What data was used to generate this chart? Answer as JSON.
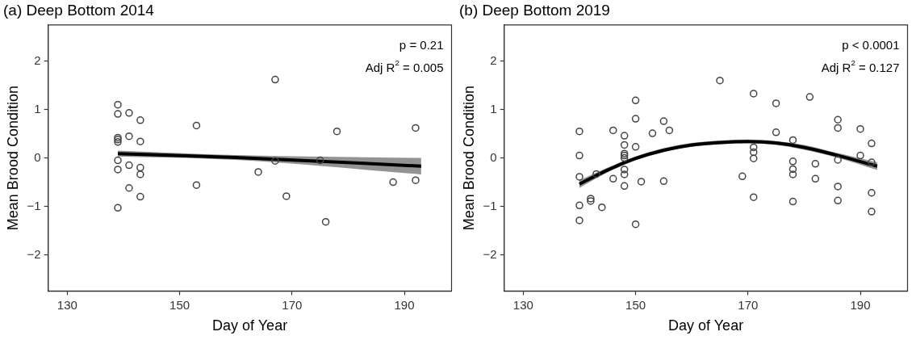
{
  "chart_data": [
    {
      "type": "scatter",
      "title": "(a) Deep Bottom 2014",
      "xlabel": "Day of Year",
      "ylabel": "Mean Brood Condition",
      "xlim": [
        126.6,
        198.4
      ],
      "ylim": [
        -2.75,
        2.75
      ],
      "xticks": [
        130,
        150,
        170,
        190
      ],
      "yticks": [
        -2,
        -1,
        0,
        1,
        2
      ],
      "grid": false,
      "annotations": [
        "p = 0.21",
        "Adj R$^{2}$ = 0.005"
      ],
      "series": [
        {
          "marker": "circle",
          "color": "#444444",
          "x": [
            139,
            139,
            139,
            139,
            139,
            139,
            139,
            139,
            141,
            141,
            141,
            141,
            143,
            143,
            143,
            143,
            143,
            153,
            153,
            164,
            167,
            167,
            169,
            175,
            176,
            178,
            188,
            192,
            192
          ],
          "values": [
            1.1,
            0.91,
            0.42,
            0.38,
            0.33,
            -0.05,
            -0.24,
            -1.03,
            0.93,
            0.45,
            -0.15,
            -0.62,
            0.78,
            0.34,
            -0.2,
            -0.34,
            -0.8,
            0.67,
            -0.56,
            -0.29,
            1.62,
            -0.06,
            -0.79,
            -0.05,
            -1.32,
            0.55,
            -0.5,
            0.62,
            -0.46
          ]
        },
        {
          "type": "line",
          "marker": "none",
          "color": "#000000",
          "x": [
            139,
            160,
            193
          ],
          "values": [
            0.09,
            0.01,
            -0.17
          ],
          "lower": [
            0.03,
            -0.04,
            -0.34
          ],
          "upper": [
            0.15,
            0.06,
            0.0
          ]
        }
      ]
    },
    {
      "type": "scatter",
      "title": "(b) Deep Bottom 2019",
      "xlabel": "Day of Year",
      "ylabel": "Mean Brood Condition",
      "xlim": [
        126.6,
        198.4
      ],
      "ylim": [
        -2.75,
        2.75
      ],
      "xticks": [
        130,
        150,
        170,
        190
      ],
      "yticks": [
        -2,
        -1,
        0,
        1,
        2
      ],
      "grid": false,
      "annotations": [
        "p < 0.0001",
        "Adj R$^{2}$ = 0.127"
      ],
      "series": [
        {
          "marker": "circle",
          "color": "#444444",
          "x": [
            140,
            140,
            140,
            140,
            140,
            142,
            142,
            143,
            144,
            146,
            146,
            148,
            148,
            148,
            148,
            148,
            148,
            148,
            148,
            150,
            150,
            150,
            150,
            151,
            153,
            155,
            155,
            156,
            165,
            169,
            171,
            171,
            171,
            171,
            171,
            175,
            175,
            178,
            178,
            178,
            178,
            178,
            181,
            182,
            182,
            186,
            186,
            186,
            186,
            186,
            190,
            190,
            192,
            192,
            192,
            192
          ],
          "values": [
            0.55,
            0.05,
            -0.39,
            -0.98,
            -1.29,
            -0.84,
            -0.89,
            -0.33,
            -1.02,
            0.57,
            -0.43,
            0.46,
            0.27,
            0.09,
            0.05,
            0.0,
            -0.24,
            -0.34,
            -0.58,
            1.19,
            0.81,
            0.23,
            -1.37,
            -0.49,
            0.51,
            0.76,
            -0.48,
            0.57,
            1.6,
            -0.38,
            1.33,
            0.22,
            0.12,
            -0.01,
            -0.81,
            1.13,
            0.53,
            0.37,
            -0.07,
            -0.23,
            -0.34,
            -0.9,
            1.26,
            -0.12,
            -0.43,
            0.79,
            0.62,
            -0.04,
            -0.59,
            -0.88,
            0.6,
            0.05,
            0.3,
            -0.09,
            -0.72,
            -1.11
          ]
        },
        {
          "type": "line",
          "marker": "none",
          "color": "#000000",
          "x": [
            140,
            145,
            150,
            155,
            160,
            165,
            170,
            175,
            180,
            186,
            193
          ],
          "values": [
            -0.54,
            -0.25,
            -0.01,
            0.16,
            0.27,
            0.32,
            0.34,
            0.31,
            0.22,
            0.05,
            -0.17
          ],
          "lower": [
            -0.62,
            -0.3,
            -0.05,
            0.12,
            0.23,
            0.28,
            0.3,
            0.27,
            0.17,
            0.0,
            -0.25
          ],
          "upper": [
            -0.46,
            -0.2,
            0.03,
            0.2,
            0.31,
            0.36,
            0.38,
            0.35,
            0.27,
            0.1,
            -0.09
          ]
        }
      ]
    }
  ]
}
